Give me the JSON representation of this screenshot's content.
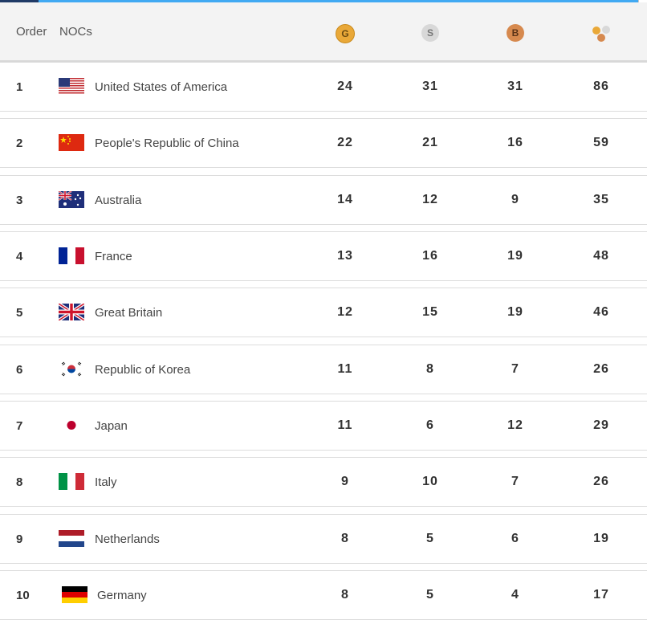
{
  "header": {
    "order_label": "Order",
    "noc_label": "NOCs",
    "gold_label": "G",
    "silver_label": "S",
    "bronze_label": "B",
    "total_icon": "medals-total-icon"
  },
  "colors": {
    "gold": "#e9a838",
    "silver": "#d8d8d8",
    "bronze": "#d6894e",
    "accent_line": "#41a9f2"
  },
  "rows": [
    {
      "rank": "1",
      "name": "United States of America",
      "flag": "usa",
      "gold": "24",
      "silver": "31",
      "bronze": "31",
      "total": "86"
    },
    {
      "rank": "2",
      "name": "People's Republic of China",
      "flag": "china",
      "gold": "22",
      "silver": "21",
      "bronze": "16",
      "total": "59"
    },
    {
      "rank": "3",
      "name": "Australia",
      "flag": "australia",
      "gold": "14",
      "silver": "12",
      "bronze": "9",
      "total": "35"
    },
    {
      "rank": "4",
      "name": "France",
      "flag": "france",
      "gold": "13",
      "silver": "16",
      "bronze": "19",
      "total": "48"
    },
    {
      "rank": "5",
      "name": "Great Britain",
      "flag": "great-britain",
      "gold": "12",
      "silver": "15",
      "bronze": "19",
      "total": "46"
    },
    {
      "rank": "6",
      "name": "Republic of Korea",
      "flag": "korea",
      "gold": "11",
      "silver": "8",
      "bronze": "7",
      "total": "26"
    },
    {
      "rank": "7",
      "name": "Japan",
      "flag": "japan",
      "gold": "11",
      "silver": "6",
      "bronze": "12",
      "total": "29"
    },
    {
      "rank": "8",
      "name": "Italy",
      "flag": "italy",
      "gold": "9",
      "silver": "10",
      "bronze": "7",
      "total": "26"
    },
    {
      "rank": "9",
      "name": "Netherlands",
      "flag": "netherlands",
      "gold": "8",
      "silver": "5",
      "bronze": "6",
      "total": "19"
    },
    {
      "rank": "10",
      "name": "Germany",
      "flag": "germany",
      "gold": "8",
      "silver": "5",
      "bronze": "4",
      "total": "17"
    }
  ]
}
